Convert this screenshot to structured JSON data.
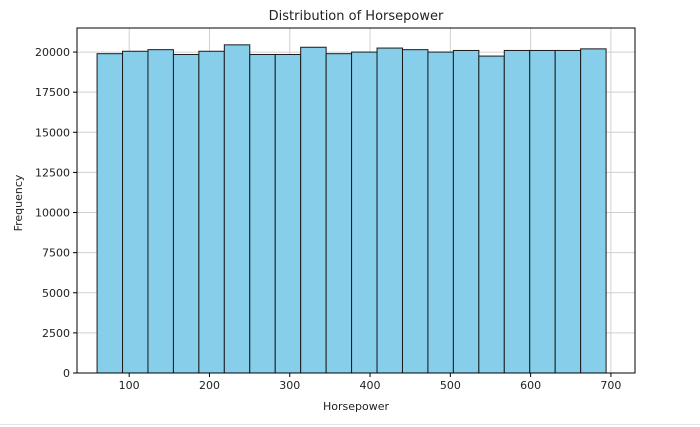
{
  "chart_data": {
    "type": "bar",
    "title": "Distribution of Horsepower",
    "xlabel": "Horsepower",
    "ylabel": "Frequency",
    "x_ticks": [
      100,
      200,
      300,
      400,
      500,
      600,
      700
    ],
    "y_ticks": [
      0,
      2500,
      5000,
      7500,
      10000,
      12500,
      15000,
      17500,
      20000
    ],
    "xlim": [
      35,
      730
    ],
    "ylim": [
      0,
      21500
    ],
    "grid": true,
    "bin_edges": [
      60,
      91.7,
      123.4,
      155.1,
      186.8,
      218.5,
      250.2,
      281.9,
      313.6,
      345.3,
      377,
      408.7,
      440.4,
      472.1,
      503.8,
      535.5,
      567.2,
      598.9,
      630.6,
      662.3,
      694
    ],
    "values": [
      19900,
      20050,
      20150,
      19850,
      20050,
      20450,
      19850,
      19850,
      20300,
      19900,
      20000,
      20250,
      20150,
      20000,
      20100,
      19750,
      20100,
      20100,
      20100,
      20200
    ],
    "colors": {
      "bar_fill": "#87ceeb",
      "bar_edge": "#1a1a1a",
      "grid": "#d0d0d0",
      "axes": "#000000"
    }
  }
}
